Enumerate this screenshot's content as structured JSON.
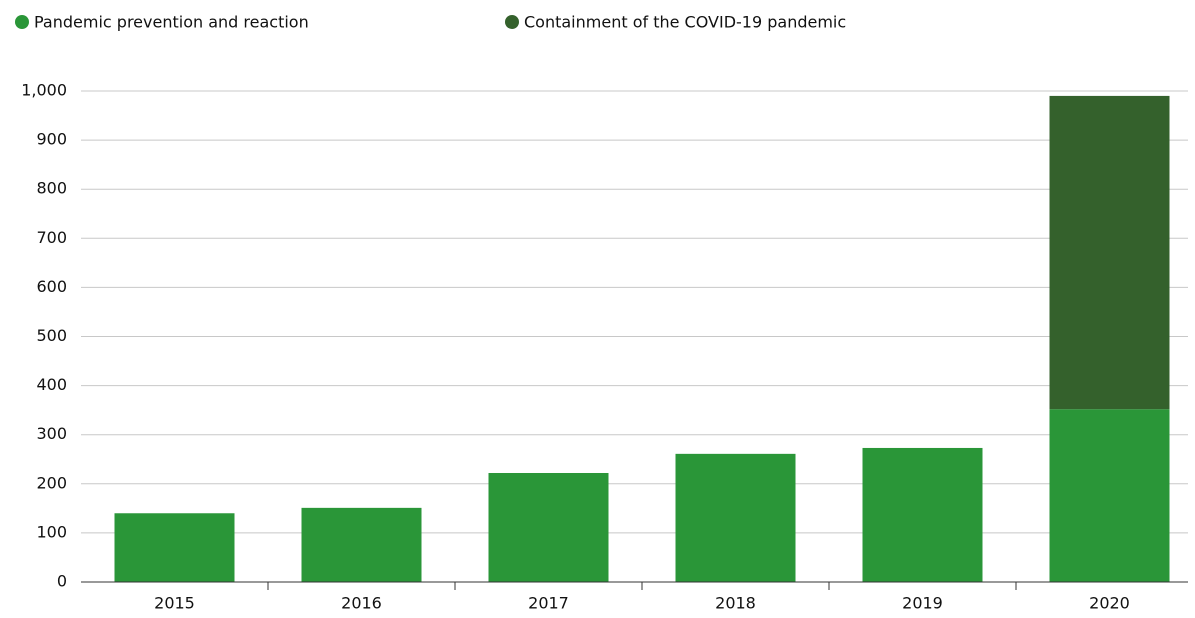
{
  "chart_data": {
    "type": "stacked_bar",
    "categories": [
      "2015",
      "2016",
      "2017",
      "2018",
      "2019",
      "2020"
    ],
    "series": [
      {
        "name": "Pandemic prevention and reaction",
        "color": "#2a9638",
        "values": [
          140,
          151,
          222,
          261,
          273,
          352
        ]
      },
      {
        "name": "Containment of the COVID-19 pandemic",
        "color": "#34612c",
        "values": [
          0,
          0,
          0,
          0,
          0,
          638
        ]
      }
    ],
    "ylim": [
      0,
      1000
    ],
    "yticks": [
      0,
      100,
      200,
      300,
      400,
      500,
      600,
      700,
      800,
      900,
      {
        "value": 1000,
        "label": "1,000"
      }
    ],
    "grid": true,
    "legend": "top"
  }
}
